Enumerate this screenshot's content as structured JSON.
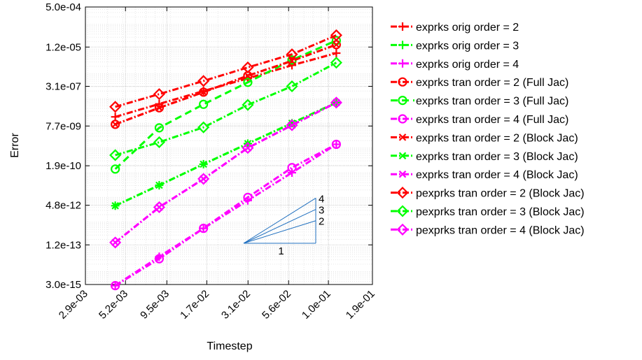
{
  "chart_data": {
    "type": "line",
    "xlabel": "Timestep",
    "ylabel": "Error",
    "xscale": "log",
    "yscale": "log",
    "xlim": [
      0.0029,
      0.19
    ],
    "ylim": [
      3e-15,
      0.0005
    ],
    "xticks": [
      {
        "value": 0.0029,
        "label": "2.9e-03"
      },
      {
        "value": 0.0052,
        "label": "5.2e-03"
      },
      {
        "value": 0.0095,
        "label": "9.5e-03"
      },
      {
        "value": 0.017,
        "label": "1.7e-02"
      },
      {
        "value": 0.031,
        "label": "3.1e-02"
      },
      {
        "value": 0.056,
        "label": "5.6e-02"
      },
      {
        "value": 0.1,
        "label": "1.0e-01"
      },
      {
        "value": 0.19,
        "label": "1.9e-01"
      }
    ],
    "yticks": [
      {
        "value": 3e-15,
        "label": "3.0e-15"
      },
      {
        "value": 1.2e-13,
        "label": "1.2e-13"
      },
      {
        "value": 4.8e-12,
        "label": "4.8e-12"
      },
      {
        "value": 1.9e-10,
        "label": "1.9e-10"
      },
      {
        "value": 7.7e-09,
        "label": "7.7e-09"
      },
      {
        "value": 3.1e-07,
        "label": "3.1e-07"
      },
      {
        "value": 1.2e-05,
        "label": "1.2e-05"
      },
      {
        "value": 0.0005,
        "label": "5.0e-04"
      }
    ],
    "x": [
      0.00448,
      0.0085,
      0.0162,
      0.0309,
      0.0588,
      0.1122
    ],
    "grid": true,
    "legend_position": "outside-right",
    "series": [
      {
        "name": "exprks orig order = 2",
        "color": "#ff0000",
        "marker": "plus",
        "dash": "dashdot",
        "values": [
          1.8e-08,
          6e-08,
          2e-07,
          6.5e-07,
          2.2e-06,
          6.8e-06
        ]
      },
      {
        "name": "exprks orig order = 3",
        "color": "#00ff00",
        "marker": "plus",
        "dash": "dashdot",
        "values": [
          4.6e-12,
          3.1e-11,
          2.2e-10,
          1.5e-09,
          1e-08,
          6.8e-08
        ]
      },
      {
        "name": "exprks orig order = 4",
        "color": "#ff00ff",
        "marker": "plus",
        "dash": "dashdot",
        "values": [
          2.7e-15,
          4e-14,
          5.6e-13,
          7.5e-12,
          1e-10,
          1.4e-09
        ]
      },
      {
        "name": "exprks tran order = 2 (Full Jac)",
        "color": "#ff0000",
        "marker": "circle",
        "dash": "dashdot",
        "values": [
          9e-09,
          4.2e-08,
          1.8e-07,
          8.3e-07,
          3.3e-06,
          1.5e-05
        ]
      },
      {
        "name": "exprks tran order = 3 (Full Jac)",
        "color": "#00ff00",
        "marker": "circle",
        "dash": "dashed",
        "values": [
          1.4e-10,
          6.5e-09,
          5.8e-08,
          4.5e-07,
          3.6e-06,
          2.2e-05
        ]
      },
      {
        "name": "exprks tran order = 4 (Full Jac)",
        "color": "#ff00ff",
        "marker": "circle",
        "dash": "dashdot",
        "values": [
          2.7e-15,
          3.3e-14,
          5.6e-13,
          1e-11,
          1.6e-10,
          1.4e-09
        ]
      },
      {
        "name": "exprks tran order = 2 (Block Jac)",
        "color": "#ff0000",
        "marker": "x",
        "dash": "dashdot",
        "values": [
          9e-09,
          4.2e-08,
          1.8e-07,
          8.3e-07,
          3.3e-06,
          1.5e-05
        ]
      },
      {
        "name": "exprks tran order = 3 (Block Jac)",
        "color": "#00ff00",
        "marker": "x",
        "dash": "dashdot",
        "values": [
          4.6e-12,
          3.1e-11,
          2.2e-10,
          1.5e-09,
          1e-08,
          6.8e-08
        ]
      },
      {
        "name": "exprks tran order = 4 (Block Jac)",
        "color": "#ff00ff",
        "marker": "x",
        "dash": "dashdot",
        "values": [
          1.5e-13,
          4e-12,
          5.6e-11,
          1e-09,
          8.3e-09,
          6.8e-08
        ]
      },
      {
        "name": "pexprks tran order = 2 (Block Jac)",
        "color": "#ff0000",
        "marker": "diamond",
        "dash": "dashdot",
        "values": [
          4.6e-08,
          1.5e-07,
          5.1e-07,
          1.8e-06,
          6.1e-06,
          3.6e-05
        ]
      },
      {
        "name": "pexprks tran order = 3 (Block Jac)",
        "color": "#00ff00",
        "marker": "diamond",
        "dash": "dashdot",
        "values": [
          5.1e-10,
          1.7e-09,
          6.8e-09,
          5.5e-08,
          3.1e-07,
          2.8e-06
        ]
      },
      {
        "name": "pexprks tran order = 4 (Block Jac)",
        "color": "#ff00ff",
        "marker": "diamond",
        "dash": "dashdot",
        "values": [
          1.5e-13,
          4e-12,
          5.6e-11,
          1e-09,
          8.3e-09,
          6.8e-08
        ]
      }
    ],
    "slope_triangle": {
      "run_label": "1",
      "slope_labels": [
        "4",
        "3",
        "2"
      ]
    }
  }
}
